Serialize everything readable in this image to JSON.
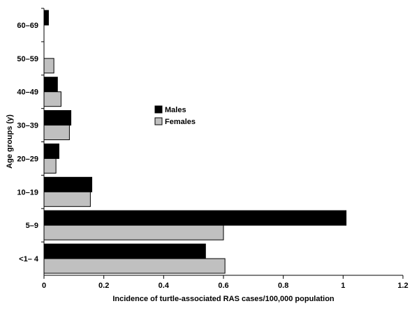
{
  "chart_data": {
    "type": "bar",
    "orientation": "horizontal",
    "categories": [
      "<1– 4",
      "5–9",
      "10–19",
      "20–29",
      "30–39",
      "40–49",
      "50–59",
      "60–69"
    ],
    "series": [
      {
        "name": "Males",
        "color": "#000000",
        "values": [
          0.54,
          1.01,
          0.16,
          0.05,
          0.09,
          0.045,
          null,
          0.015
        ]
      },
      {
        "name": "Females",
        "color": "#c0c0c0",
        "values": [
          0.605,
          0.6,
          0.155,
          0.04,
          0.085,
          0.057,
          0.033,
          null
        ]
      }
    ],
    "xlabel": "Incidence of turtle-associated RAS cases/100,000 population",
    "ylabel": "Age groups (y)",
    "xlim": [
      0,
      1.2
    ],
    "xticks": [
      "0",
      "0.2",
      "0.4",
      "0.6",
      "0.8",
      "1",
      "1.2"
    ],
    "grid": false,
    "legend_position": "center"
  }
}
